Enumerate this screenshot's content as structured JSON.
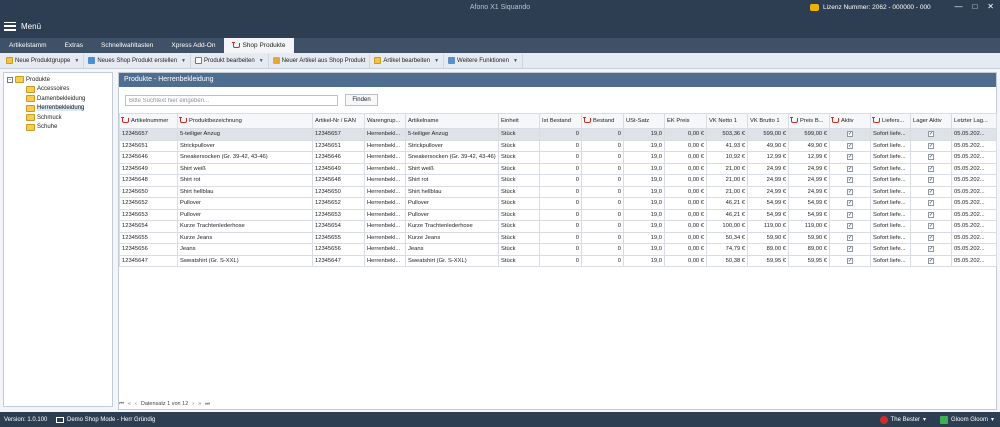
{
  "titlebar": {
    "app_title": "Afono X1 Siquando",
    "menu_label": "Menü",
    "license_label": "Lizenz Nummer: 2062 - 000000 - 000",
    "minimize": "—",
    "maximize": "□",
    "close": "✕"
  },
  "tabs": [
    {
      "label": "Artikelstamm"
    },
    {
      "label": "Extras"
    },
    {
      "label": "Schnellwahltasten"
    },
    {
      "label": "Xpress Add-On"
    },
    {
      "label": "Shop Produkte"
    }
  ],
  "toolbar": {
    "new_group": "Neue Produktgruppe",
    "new_product": "Neues Shop Produkt erstellen",
    "edit_product": "Produkt bearbeiten",
    "new_from_shop": "Neuer Artikel aus Shop Produkt",
    "edit_article": "Artikel bearbeiten",
    "more_functions": "Weitere Funktionen"
  },
  "tree": {
    "root": "Produkte",
    "expander": "−",
    "items": [
      {
        "label": "Accessoires"
      },
      {
        "label": "Damenbekleidung"
      },
      {
        "label": "Herrenbekleidung"
      },
      {
        "label": "Schmuck"
      },
      {
        "label": "Schuhe"
      }
    ]
  },
  "panel": {
    "title": "Produkte - Herrenbekleidung",
    "search_placeholder": "Bitte Suchtext hier eingeben...",
    "find_button": "Finden"
  },
  "columns": [
    "Artikelnummer",
    "Produktbezeichnung",
    "Artikel-Nr / EAN",
    "Warengrup...",
    "Artikelname",
    "Einheit",
    "Ist Bestand",
    "Bestand",
    "USt-Satz",
    "EK Preis",
    "VK Netto 1",
    "VK Brutto 1",
    "Preis B...",
    "Aktiv",
    "Liefers...",
    "Lager Aktiv",
    "Letzter Lag..."
  ],
  "rows": [
    {
      "nr": "12345657",
      "bez": "5-teiliger Anzug",
      "ean": "12345657",
      "wg": "Herrenbekl...",
      "name": "5-teiliger Anzug",
      "einheit": "Stück",
      "ist": "0",
      "bestand": "0",
      "ust": "19,0",
      "ek": "0,00 €",
      "netto": "503,36 €",
      "brutto": "599,00 €",
      "preisb": "599,00 €",
      "aktiv": "✓",
      "liefer": "Sofort liefe...",
      "lager": "✓",
      "letzter": "05.05.202..."
    },
    {
      "nr": "12345651",
      "bez": "Strickpullover",
      "ean": "12345651",
      "wg": "Herrenbekl...",
      "name": "Strickpullover",
      "einheit": "Stück",
      "ist": "0",
      "bestand": "0",
      "ust": "19,0",
      "ek": "0,00 €",
      "netto": "41,93 €",
      "brutto": "49,90 €",
      "preisb": "49,90 €",
      "aktiv": "✓",
      "liefer": "Sofort liefe...",
      "lager": "✓",
      "letzter": "05.05.202..."
    },
    {
      "nr": "12345646",
      "bez": "Sneakersocken (Gr. 39-42, 43-46)",
      "ean": "12345646",
      "wg": "Herrenbekl...",
      "name": "Sneakersocken (Gr. 39-42, 43-46)",
      "einheit": "Stück",
      "ist": "0",
      "bestand": "0",
      "ust": "19,0",
      "ek": "0,00 €",
      "netto": "10,92 €",
      "brutto": "12,99 €",
      "preisb": "12,99 €",
      "aktiv": "✓",
      "liefer": "Sofort liefe...",
      "lager": "✓",
      "letzter": "05.05.202..."
    },
    {
      "nr": "12345649",
      "bez": "Shirt weiß",
      "ean": "12345649",
      "wg": "Herrenbekl...",
      "name": "Shirt weiß",
      "einheit": "Stück",
      "ist": "0",
      "bestand": "0",
      "ust": "19,0",
      "ek": "0,00 €",
      "netto": "21,00 €",
      "brutto": "24,99 €",
      "preisb": "24,99 €",
      "aktiv": "✓",
      "liefer": "Sofort liefe...",
      "lager": "✓",
      "letzter": "05.05.202..."
    },
    {
      "nr": "12345648",
      "bez": "Shirt rot",
      "ean": "12345648",
      "wg": "Herrenbekl...",
      "name": "Shirt rot",
      "einheit": "Stück",
      "ist": "0",
      "bestand": "0",
      "ust": "19,0",
      "ek": "0,00 €",
      "netto": "21,00 €",
      "brutto": "24,99 €",
      "preisb": "24,99 €",
      "aktiv": "✓",
      "liefer": "Sofort liefe...",
      "lager": "✓",
      "letzter": "05.05.202..."
    },
    {
      "nr": "12345650",
      "bez": "Shirt hellblau",
      "ean": "12345650",
      "wg": "Herrenbekl...",
      "name": "Shirt hellblau",
      "einheit": "Stück",
      "ist": "0",
      "bestand": "0",
      "ust": "19,0",
      "ek": "0,00 €",
      "netto": "21,00 €",
      "brutto": "24,99 €",
      "preisb": "24,99 €",
      "aktiv": "✓",
      "liefer": "Sofort liefe...",
      "lager": "✓",
      "letzter": "05.05.202..."
    },
    {
      "nr": "12345652",
      "bez": "Pullover",
      "ean": "12345652",
      "wg": "Herrenbekl...",
      "name": "Pullover",
      "einheit": "Stück",
      "ist": "0",
      "bestand": "0",
      "ust": "19,0",
      "ek": "0,00 €",
      "netto": "46,21 €",
      "brutto": "54,99 €",
      "preisb": "54,99 €",
      "aktiv": "✓",
      "liefer": "Sofort liefe...",
      "lager": "✓",
      "letzter": "05.05.202..."
    },
    {
      "nr": "12345653",
      "bez": "Pullover",
      "ean": "12345653",
      "wg": "Herrenbekl...",
      "name": "Pullover",
      "einheit": "Stück",
      "ist": "0",
      "bestand": "0",
      "ust": "19,0",
      "ek": "0,00 €",
      "netto": "46,21 €",
      "brutto": "54,99 €",
      "preisb": "54,99 €",
      "aktiv": "✓",
      "liefer": "Sofort liefe...",
      "lager": "✓",
      "letzter": "05.05.202..."
    },
    {
      "nr": "12345654",
      "bez": "Kurze Trachtenlederhose",
      "ean": "12345654",
      "wg": "Herrenbekl...",
      "name": "Kurze Trachtenlederhose",
      "einheit": "Stück",
      "ist": "0",
      "bestand": "0",
      "ust": "19,0",
      "ek": "0,00 €",
      "netto": "100,00 €",
      "brutto": "119,00 €",
      "preisb": "119,00 €",
      "aktiv": "✓",
      "liefer": "Sofort liefe...",
      "lager": "✓",
      "letzter": "05.05.202..."
    },
    {
      "nr": "12345655",
      "bez": "Kurze Jeans",
      "ean": "12345655",
      "wg": "Herrenbekl...",
      "name": "Kurze Jeans",
      "einheit": "Stück",
      "ist": "0",
      "bestand": "0",
      "ust": "19,0",
      "ek": "0,00 €",
      "netto": "50,34 €",
      "brutto": "59,90 €",
      "preisb": "59,90 €",
      "aktiv": "✓",
      "liefer": "Sofort liefe...",
      "lager": "✓",
      "letzter": "05.05.202..."
    },
    {
      "nr": "12345656",
      "bez": "Jeans",
      "ean": "12345656",
      "wg": "Herrenbekl...",
      "name": "Jeans",
      "einheit": "Stück",
      "ist": "0",
      "bestand": "0",
      "ust": "19,0",
      "ek": "0,00 €",
      "netto": "74,79 €",
      "brutto": "89,00 €",
      "preisb": "89,00 €",
      "aktiv": "✓",
      "liefer": "Sofort liefe...",
      "lager": "✓",
      "letzter": "05.05.202..."
    },
    {
      "nr": "12345647",
      "bez": "Sweatshirt (Gr. S-XXL)",
      "ean": "12345647",
      "wg": "Herrenbekl...",
      "name": "Sweatshirt (Gr. S-XXL)",
      "einheit": "Stück",
      "ist": "0",
      "bestand": "0",
      "ust": "19,0",
      "ek": "0,00 €",
      "netto": "50,38 €",
      "brutto": "59,95 €",
      "preisb": "59,95 €",
      "aktiv": "✓",
      "liefer": "Sofort liefe...",
      "lager": "✓",
      "letzter": "05.05.202..."
    }
  ],
  "pager": {
    "first": "⏮",
    "prev_page": "«",
    "prev": "‹",
    "record_text": "Datensatz 1 von 12",
    "next": "›",
    "next_page": "»",
    "last": "⏭"
  },
  "statusbar": {
    "version": "Version: 1.0.100",
    "mode": "Demo Shop Mode - Herr Gründig",
    "user1": "The Bester",
    "user2": "Gloom Gloom"
  }
}
